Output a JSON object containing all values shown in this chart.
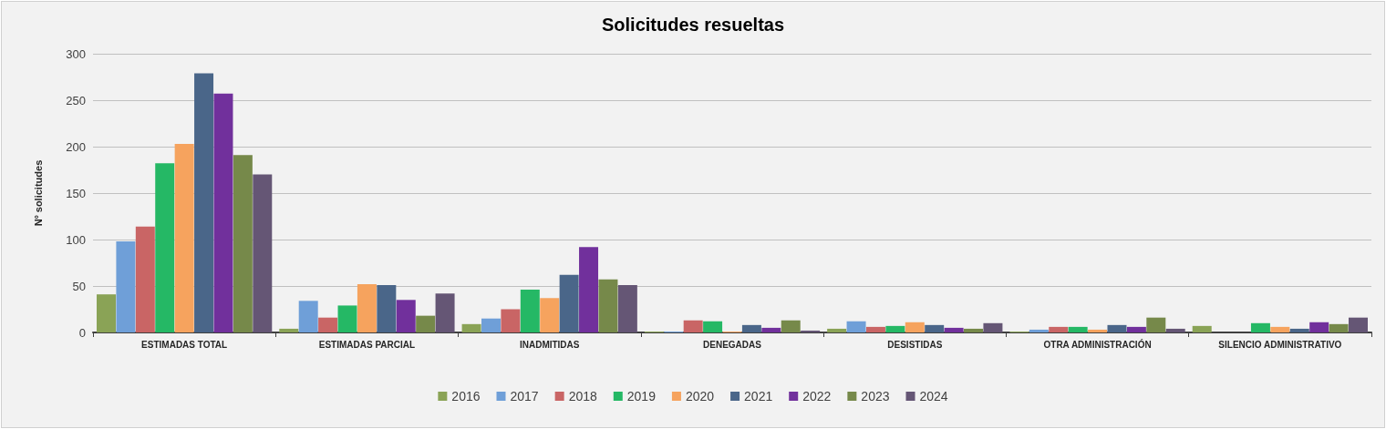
{
  "chart_data": {
    "type": "bar",
    "title": "Solicitudes resueltas",
    "ylabel": "Nº solicitudes",
    "categories": [
      "ESTIMADAS TOTAL",
      "ESTIMADAS PARCIAL",
      "INADMITIDAS",
      "DENEGADAS",
      "DESISTIDAS",
      "OTRA ADMINISTRACIÓN",
      "SILENCIO ADMINISTRATIVO"
    ],
    "series": [
      {
        "name": "2016",
        "color": "#8aa356",
        "values": [
          41,
          4,
          9,
          1,
          4,
          1,
          7
        ]
      },
      {
        "name": "2017",
        "color": "#6f9fd8",
        "values": [
          98,
          34,
          15,
          1,
          12,
          3,
          0
        ]
      },
      {
        "name": "2018",
        "color": "#c96565",
        "values": [
          114,
          16,
          25,
          13,
          6,
          6,
          0
        ]
      },
      {
        "name": "2019",
        "color": "#25b865",
        "values": [
          182,
          29,
          46,
          12,
          7,
          6,
          10
        ]
      },
      {
        "name": "2020",
        "color": "#f6a35e",
        "values": [
          203,
          52,
          37,
          1,
          11,
          3,
          6
        ]
      },
      {
        "name": "2021",
        "color": "#4a6689",
        "values": [
          279,
          51,
          62,
          8,
          8,
          8,
          4
        ]
      },
      {
        "name": "2022",
        "color": "#71309c",
        "values": [
          257,
          35,
          92,
          5,
          5,
          6,
          11
        ]
      },
      {
        "name": "2023",
        "color": "#76894a",
        "values": [
          191,
          18,
          57,
          13,
          4,
          16,
          9
        ]
      },
      {
        "name": "2024",
        "color": "#655675",
        "values": [
          170,
          42,
          51,
          2,
          10,
          4,
          16
        ]
      }
    ],
    "ylim": [
      0,
      300
    ],
    "yticks": [
      0,
      50,
      100,
      150,
      200,
      250,
      300
    ],
    "grid": "y",
    "legend": "bottom"
  }
}
